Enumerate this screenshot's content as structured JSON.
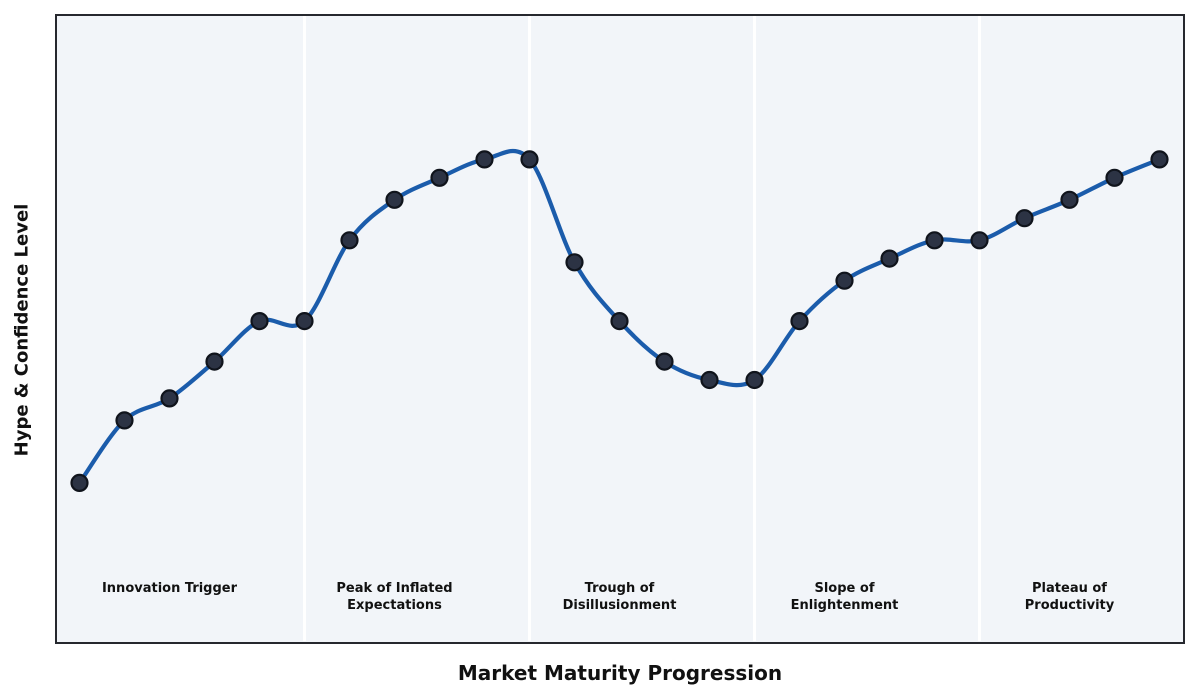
{
  "figure": {
    "xlabel": "Market Maturity Progression",
    "ylabel": "Hype & Confidence Level"
  },
  "phases": [
    {
      "label": "Innovation Trigger",
      "x": 2
    },
    {
      "label": "Peak of Inflated\nExpectations",
      "x": 7
    },
    {
      "label": "Trough of\nDisillusionment",
      "x": 12
    },
    {
      "label": "Slope of\nEnlightenment",
      "x": 17
    },
    {
      "label": "Plateau of\nProductivity",
      "x": 22
    }
  ],
  "chart_data": {
    "type": "line",
    "title": "",
    "xlabel": "Market Maturity Progression",
    "ylabel": "Hype & Confidence Level",
    "x": [
      0,
      1,
      2,
      3,
      4,
      5,
      6,
      7,
      8,
      9,
      10,
      11,
      12,
      13,
      14,
      15,
      16,
      17,
      18,
      19,
      20,
      21,
      22,
      23,
      24
    ],
    "values": [
      8,
      25,
      31,
      41,
      52,
      52,
      74,
      85,
      91,
      96,
      96,
      68,
      52,
      41,
      36,
      36,
      52,
      63,
      69,
      74,
      74,
      80,
      85,
      91,
      96
    ],
    "xlim": [
      -0.5,
      24.5
    ],
    "ylim": [
      -35,
      135
    ],
    "phase_boundaries_x": [
      5,
      10,
      15,
      20
    ],
    "smoothing": "spline",
    "markers": true,
    "grid": false,
    "legend": false,
    "axis_ticks": "none"
  },
  "colors": {
    "line": "#1b5cab",
    "marker_fill": "#2c3344",
    "marker_edge": "#10141c",
    "axes_background": "#f2f5f9",
    "axes_border": "#26282e",
    "divider": "#ffffff",
    "label_text": "#111111",
    "figure_background": "#ffffff"
  }
}
